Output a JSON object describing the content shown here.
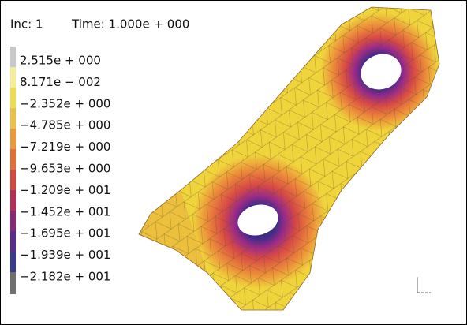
{
  "header": {
    "increment": "Inc: 1",
    "time": "Time: 1.000e + 000"
  },
  "legend": {
    "labels": [
      "2.515e + 000",
      "8.171e − 002",
      "−2.352e + 000",
      "−4.785e + 000",
      "−7.219e + 000",
      "−9.653e + 000",
      "−1.209e + 001",
      "−1.452e + 001",
      "−1.695e + 001",
      "−1.939e + 001",
      "−2.182e + 001"
    ]
  }
}
